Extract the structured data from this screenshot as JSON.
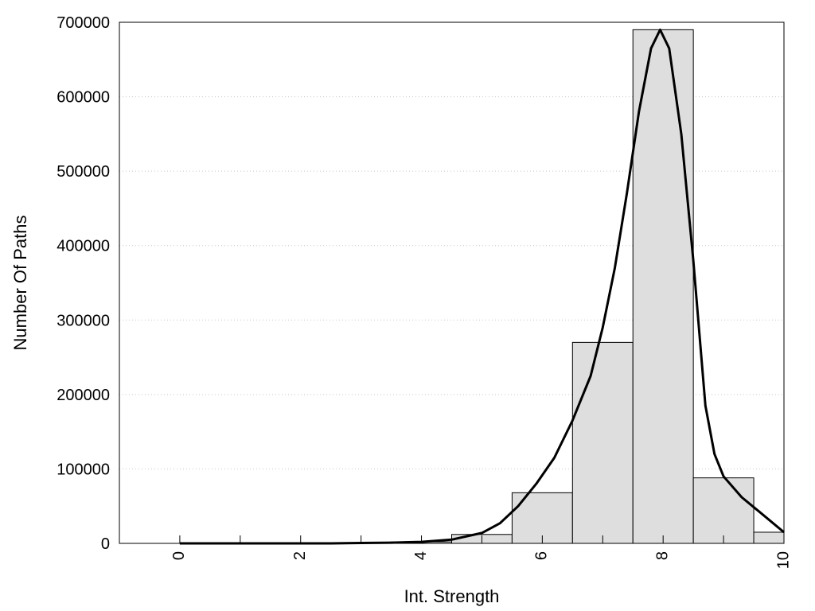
{
  "chart_data": {
    "type": "bar",
    "xlabel": "Int. Strength",
    "ylabel": "Number Of Paths",
    "xlim": [
      -1,
      10
    ],
    "ylim": [
      0,
      700000
    ],
    "x_ticks": [
      0,
      2,
      4,
      6,
      8,
      10
    ],
    "y_ticks": [
      0,
      100000,
      200000,
      300000,
      400000,
      500000,
      600000,
      700000
    ],
    "grid": "horizontal-dotted",
    "bar_color": "#dedede",
    "bars": [
      {
        "x": 0,
        "value": 0
      },
      {
        "x": 1,
        "value": 0
      },
      {
        "x": 2,
        "value": 0
      },
      {
        "x": 3,
        "value": 200
      },
      {
        "x": 4,
        "value": 2000
      },
      {
        "x": 5,
        "value": 12000
      },
      {
        "x": 6,
        "value": 68000
      },
      {
        "x": 7,
        "value": 270000
      },
      {
        "x": 8,
        "value": 690000
      },
      {
        "x": 9,
        "value": 88000
      },
      {
        "x": 10,
        "value": 15000
      }
    ],
    "curve": {
      "color": "#000000",
      "points": [
        [
          0,
          0
        ],
        [
          1,
          0
        ],
        [
          2,
          0
        ],
        [
          2.5,
          0
        ],
        [
          3,
          500
        ],
        [
          3.5,
          1000
        ],
        [
          4,
          2000
        ],
        [
          4.5,
          5000
        ],
        [
          5,
          14000
        ],
        [
          5.3,
          27000
        ],
        [
          5.6,
          50000
        ],
        [
          5.9,
          80000
        ],
        [
          6.2,
          115000
        ],
        [
          6.5,
          165000
        ],
        [
          6.8,
          225000
        ],
        [
          7,
          290000
        ],
        [
          7.2,
          370000
        ],
        [
          7.4,
          470000
        ],
        [
          7.6,
          580000
        ],
        [
          7.8,
          665000
        ],
        [
          7.95,
          690000
        ],
        [
          8.1,
          665000
        ],
        [
          8.3,
          550000
        ],
        [
          8.5,
          380000
        ],
        [
          8.7,
          185000
        ],
        [
          8.85,
          120000
        ],
        [
          9,
          90000
        ],
        [
          9.3,
          62000
        ],
        [
          9.6,
          42000
        ],
        [
          10,
          15000
        ]
      ]
    }
  }
}
